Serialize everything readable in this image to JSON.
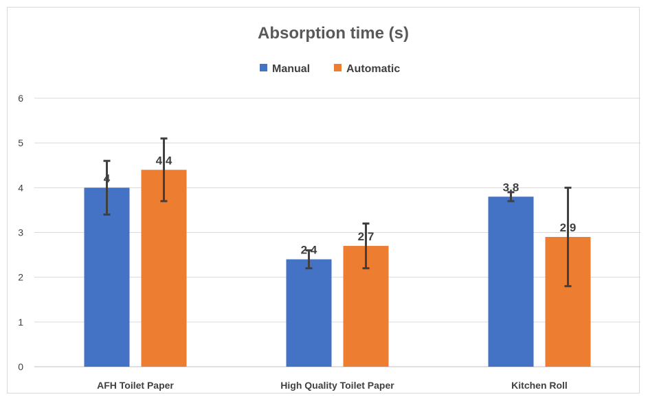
{
  "chart_data": {
    "type": "bar",
    "title": "Absorption time (s)",
    "categories": [
      "AFH Toilet Paper",
      "High Quality Toilet Paper",
      "Kitchen Roll"
    ],
    "series": [
      {
        "name": "Manual",
        "color": "#4472c4",
        "values": [
          4,
          2.4,
          3.8
        ],
        "labels": [
          "4",
          "2,4",
          "3,8"
        ],
        "error_low": [
          3.4,
          2.2,
          3.7
        ],
        "error_high": [
          4.6,
          2.6,
          3.9
        ]
      },
      {
        "name": "Automatic",
        "color": "#ed7d31",
        "values": [
          4.4,
          2.7,
          2.9
        ],
        "labels": [
          "4,4",
          "2,7",
          "2,9"
        ],
        "error_low": [
          3.7,
          2.2,
          1.8
        ],
        "error_high": [
          5.1,
          3.2,
          4.0
        ]
      }
    ],
    "y_ticks": [
      "0",
      "1",
      "2",
      "3",
      "4",
      "5",
      "6"
    ],
    "ylim": [
      0,
      6
    ],
    "grid": true,
    "legend_position": "top-center"
  }
}
